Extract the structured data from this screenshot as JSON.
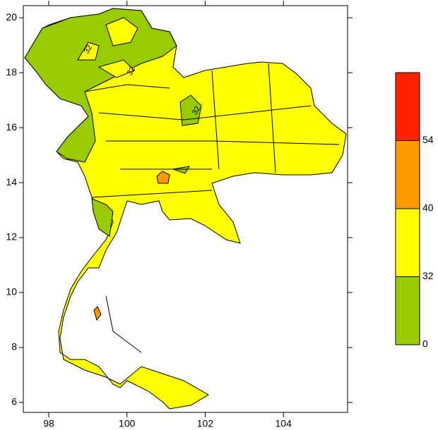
{
  "map": {
    "xlim": [
      97.35,
      105.64
    ],
    "xticks": [
      98,
      100,
      102,
      104
    ],
    "ylim": [
      5.64,
      20.44
    ],
    "yticks": [
      6,
      8,
      10,
      12,
      14,
      16,
      18,
      20
    ],
    "contour_labels": [
      32,
      32,
      32
    ],
    "colorbar": {
      "levels": [
        0,
        32,
        40,
        54
      ],
      "colors": [
        "#99cc00",
        "#ffff00",
        "#ff9900",
        "#ff2200"
      ]
    }
  }
}
